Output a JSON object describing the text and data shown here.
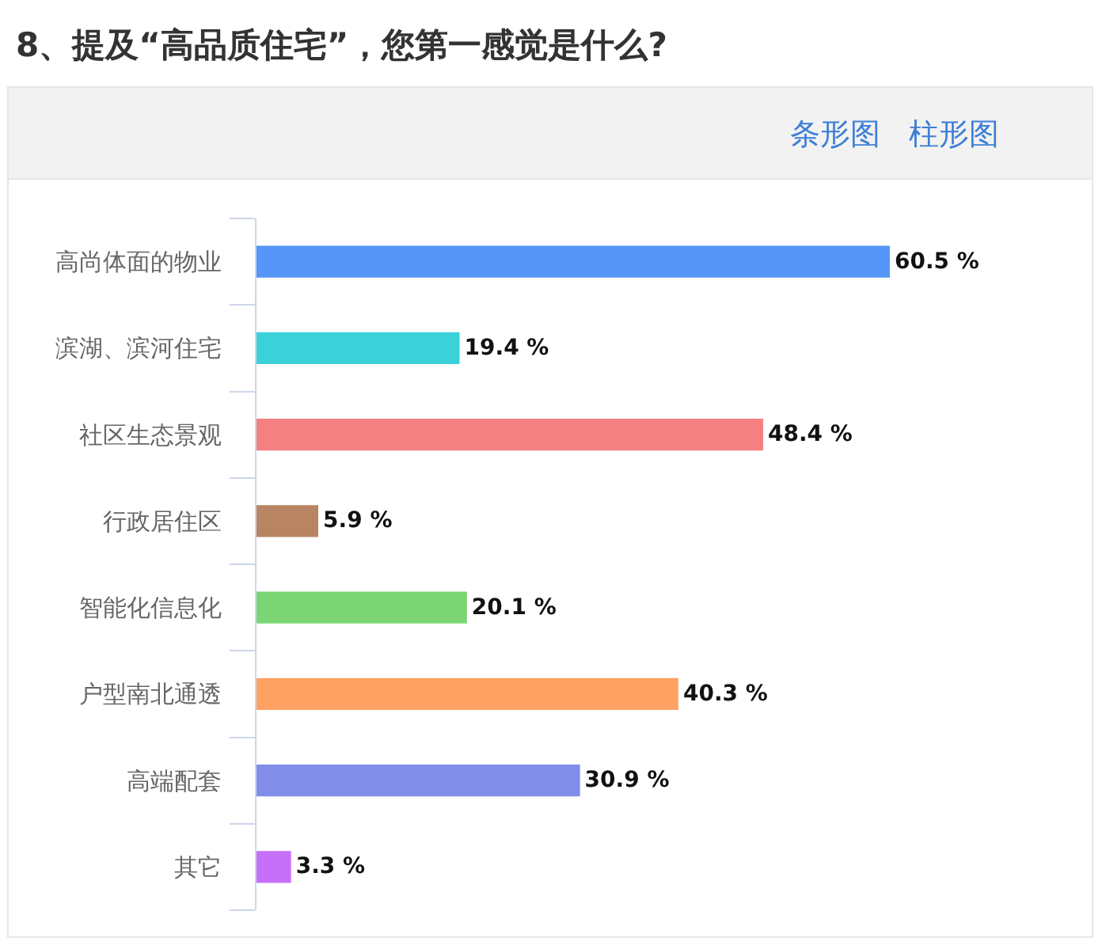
{
  "chart_data": {
    "type": "bar",
    "orientation": "horizontal",
    "title": "8、提及“高品质住宅”，您第一感觉是什么?",
    "categories": [
      "高尚体面的物业",
      "滨湖、滨河住宅",
      "社区生态景观",
      "行政居住区",
      "智能化信息化",
      "户型南北通透",
      "高端配套",
      "其它"
    ],
    "values": [
      60.5,
      19.4,
      48.4,
      5.9,
      20.1,
      40.3,
      30.9,
      3.3
    ],
    "value_labels": [
      "60.5 %",
      "19.4 %",
      "48.4 %",
      "5.9 %",
      "20.1 %",
      "40.3 %",
      "30.9 %",
      "3.3 %"
    ],
    "colors": [
      "#5596f8",
      "#3bd1d9",
      "#f48081",
      "#b98462",
      "#7bd574",
      "#ffa263",
      "#828ce9",
      "#c66ff9"
    ],
    "annotations": [
      "条形图",
      "柱形图"
    ]
  }
}
